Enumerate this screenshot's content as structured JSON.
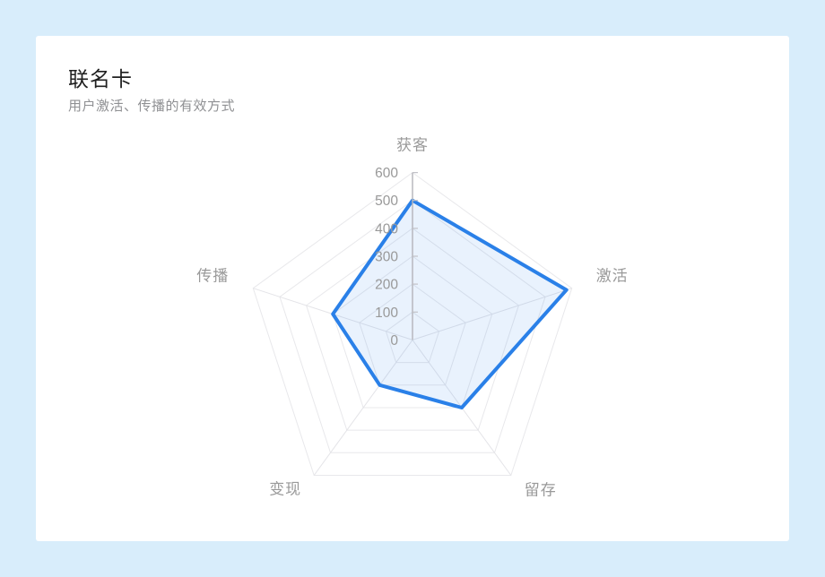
{
  "page": {
    "background_color": "#d8edfb",
    "card_background_color": "#ffffff"
  },
  "card": {
    "title": "联名卡",
    "subtitle": "用户激活、传播的有效方式"
  },
  "chart_data": {
    "type": "radar",
    "indicators": [
      {
        "name": "获客",
        "max": 600
      },
      {
        "name": "激活",
        "max": 600
      },
      {
        "name": "留存",
        "max": 600
      },
      {
        "name": "变现",
        "max": 600
      },
      {
        "name": "传播",
        "max": 600
      }
    ],
    "series": [
      {
        "name": "联名卡",
        "values": [
          500,
          580,
          300,
          200,
          300
        ]
      }
    ],
    "axis_ticks": [
      0,
      100,
      200,
      300,
      400,
      500,
      600
    ],
    "tick_interval": 100,
    "axis_max": 600,
    "grid": "on",
    "legend_position": "none",
    "colors": {
      "series_line": "#2a80e8",
      "series_fill": "rgba(42,128,232,0.10)",
      "grid_line": "#e8e8eb",
      "spoke_line": "#e4e4e8",
      "value_axis_line": "#b4b4ba",
      "tick_mark": "#c2c2c8",
      "tick_label": "#999999",
      "axis_name_label": "#999999"
    }
  }
}
